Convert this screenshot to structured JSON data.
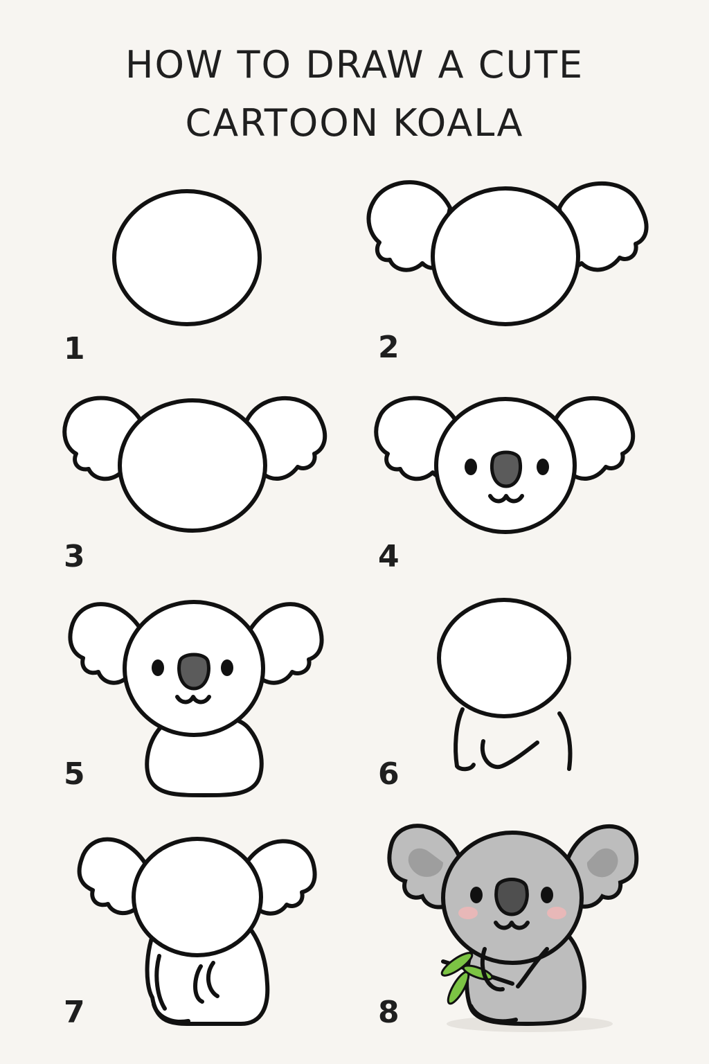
{
  "title": {
    "line1": "HOW TO DRAW A CUTE",
    "line2": "CARTOON KOALA"
  },
  "steps": [
    {
      "number": "1"
    },
    {
      "number": "2"
    },
    {
      "number": "3"
    },
    {
      "number": "4"
    },
    {
      "number": "5"
    },
    {
      "number": "6"
    },
    {
      "number": "7"
    },
    {
      "number": "8"
    }
  ],
  "colors": {
    "background": "#f7f5f1",
    "outline": "#111111",
    "nose": "#5b5b5b",
    "koala_fur": "#bdbdbd",
    "inner_ear": "#9e9e9e",
    "cheek": "#f2b6b6",
    "leaf": "#7cc444"
  }
}
